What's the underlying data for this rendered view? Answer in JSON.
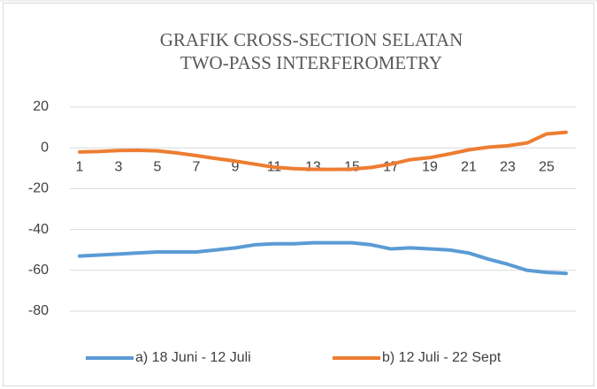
{
  "chart_data": {
    "type": "line",
    "title": [
      "GRAFIK CROSS-SECTION SELATAN",
      "TWO-PASS INTERFEROMETRY"
    ],
    "categories": [
      1,
      null,
      3,
      null,
      5,
      null,
      7,
      null,
      9,
      null,
      11,
      null,
      13,
      null,
      15,
      null,
      17,
      null,
      19,
      null,
      21,
      null,
      23,
      null,
      25,
      null
    ],
    "series": [
      {
        "name": "a) 18 Juni - 12 Juli",
        "color": "#5b9bd5",
        "values": [
          -53,
          -52.5,
          -52,
          -51.5,
          -51,
          -51,
          -51,
          -50,
          -49,
          -47.5,
          -47,
          -47,
          -46.5,
          -46.5,
          -46.5,
          -47.5,
          -49.5,
          -49,
          -49.5,
          -50,
          -51.5,
          -54.5,
          -57,
          -60,
          -61,
          -61.5
        ]
      },
      {
        "name": "b) 12 Juli - 22 Sept",
        "color": "#ed7d31",
        "values": [
          -2,
          -1.8,
          -1.3,
          -1.2,
          -1.5,
          -2.5,
          -3.8,
          -5.2,
          -6.5,
          -8,
          -9.5,
          -10.2,
          -10.5,
          -10.6,
          -10.4,
          -9.6,
          -8,
          -5.8,
          -4.8,
          -3,
          -1,
          0.3,
          1,
          2.4,
          6.8,
          7.6
        ]
      }
    ],
    "ylim": [
      -80,
      20
    ],
    "yticks": [
      20,
      0,
      -20,
      -40,
      -60,
      -80
    ],
    "grid": true,
    "legend": "bottom"
  }
}
